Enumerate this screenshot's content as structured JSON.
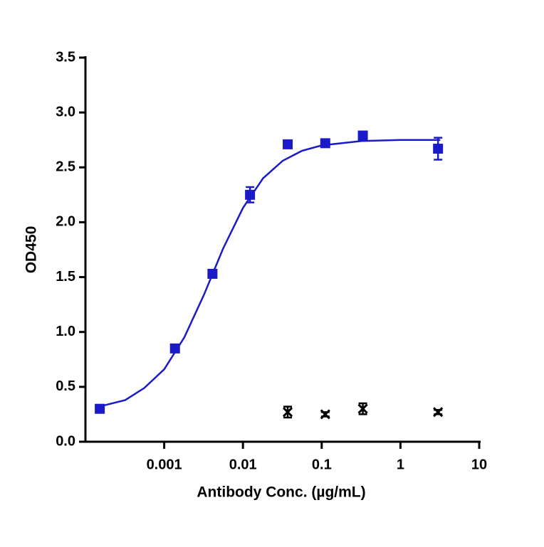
{
  "chart_data": {
    "type": "dose-response",
    "xlabel": "Antibody Conc. (µg/mL)",
    "ylabel": "OD450",
    "xscale": "log",
    "xlim": [
      0.0001,
      10
    ],
    "xticks": [
      0.001,
      0.01,
      0.1,
      1,
      10
    ],
    "ylim": [
      0,
      3.5
    ],
    "yticks": [
      {
        "value": 0,
        "label": "0.0"
      },
      {
        "value": 0.5,
        "label": "0.5"
      },
      {
        "value": 1,
        "label": "1.0"
      },
      {
        "value": 1.5,
        "label": "1.5"
      },
      {
        "value": 2,
        "label": "2.0"
      },
      {
        "value": 2.5,
        "label": "2.5"
      },
      {
        "value": 3,
        "label": "3.0"
      },
      {
        "value": 3.5,
        "label": "3.5"
      }
    ],
    "series": [
      {
        "marker": "square",
        "color": "#1a1ac8",
        "x": [
          0.000152,
          0.00137,
          0.0041,
          0.0123,
          0.037,
          0.111,
          0.333,
          3
        ],
        "values": [
          0.3,
          0.85,
          1.53,
          2.25,
          2.71,
          2.72,
          2.79,
          2.67
        ],
        "errors": [
          0.02,
          0.03,
          0.03,
          0.07,
          0.03,
          0.02,
          0.02,
          0.1
        ]
      },
      {
        "marker": "x",
        "color": "#000000",
        "x": [
          0.037,
          0.111,
          0.333,
          3
        ],
        "values": [
          0.27,
          0.25,
          0.3,
          0.27
        ],
        "errors": [
          0.05,
          0.02,
          0.05,
          0.02
        ]
      }
    ],
    "fit": {
      "color": "#1a1ac8",
      "x": [
        0.00015,
        0.00032,
        0.00056,
        0.001,
        0.0018,
        0.0032,
        0.0056,
        0.01,
        0.018,
        0.032,
        0.056,
        0.1,
        0.32,
        1,
        3.2
      ],
      "values": [
        0.32,
        0.38,
        0.49,
        0.66,
        0.95,
        1.34,
        1.76,
        2.13,
        2.4,
        2.56,
        2.65,
        2.7,
        2.74,
        2.75,
        2.75
      ]
    }
  }
}
